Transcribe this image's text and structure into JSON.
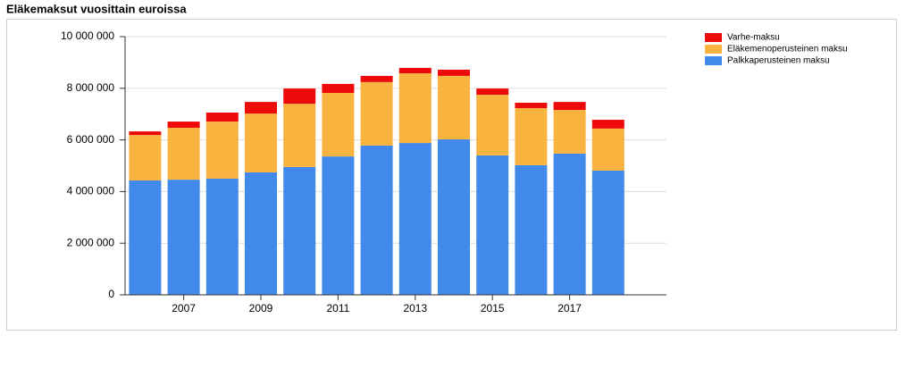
{
  "chart_data": {
    "type": "stacked_bar",
    "title": "Eläkemaksut vuosittain euroissa",
    "categories": [
      null,
      "2007",
      null,
      "2009",
      null,
      "2011",
      null,
      "2013",
      null,
      "2015",
      null,
      "2017",
      null
    ],
    "series": [
      {
        "name": "Palkkaperusteinen maksu",
        "color": "#4289ec",
        "values": [
          4430000,
          4460000,
          4500000,
          4740000,
          4950000,
          5360000,
          5780000,
          5880000,
          6020000,
          5400000,
          5020000,
          5470000,
          4810000
        ]
      },
      {
        "name": "Eläkemenoperusteinen maksu",
        "color": "#f9b440",
        "values": [
          1760000,
          2010000,
          2210000,
          2280000,
          2450000,
          2460000,
          2460000,
          2700000,
          2460000,
          2350000,
          2210000,
          1690000,
          1630000
        ]
      },
      {
        "name": "Varhe-maksu",
        "color": "#ee0a0a",
        "values": [
          140000,
          240000,
          350000,
          450000,
          590000,
          350000,
          240000,
          210000,
          240000,
          240000,
          210000,
          310000,
          340000
        ]
      }
    ],
    "ylim": [
      0,
      10000000
    ],
    "yticks": [
      0,
      {
        "value": 2000000,
        "label": "2 000 000"
      },
      {
        "value": 4000000,
        "label": "4 000 000"
      },
      {
        "value": 6000000,
        "label": "6 000 000"
      },
      {
        "value": 8000000,
        "label": "8 000 000"
      },
      {
        "value": 10000000,
        "label": "10 000 000"
      }
    ],
    "grid": true
  }
}
